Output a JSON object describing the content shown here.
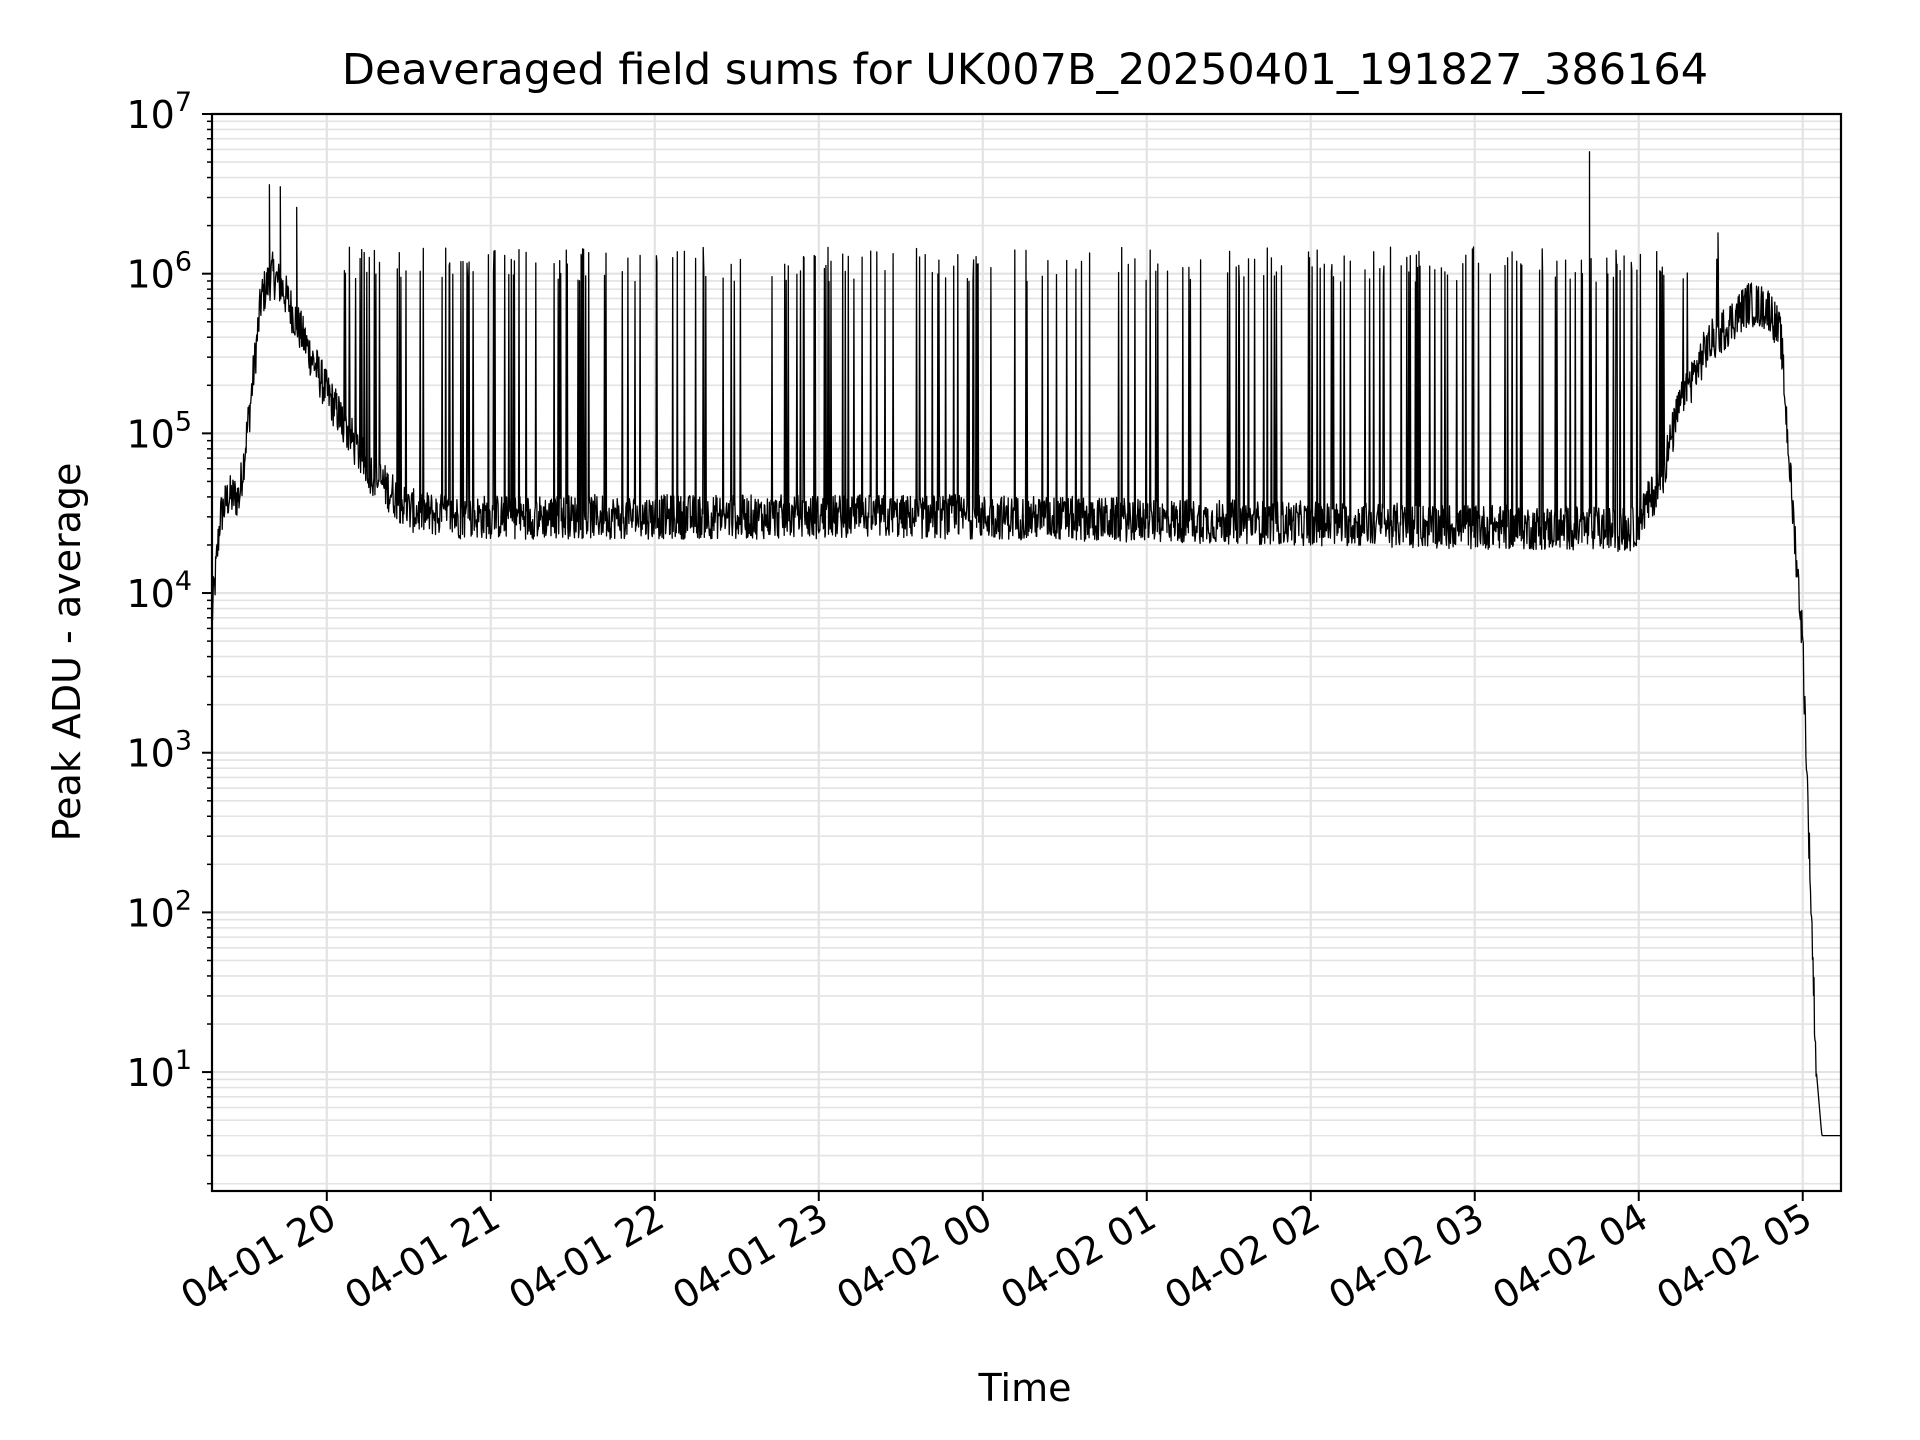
{
  "chart_data": {
    "type": "line",
    "title": "Deaveraged field sums for UK007B_20250401_191827_386164",
    "xlabel": "Time",
    "ylabel": "Peak ADU - average",
    "yscale": "log",
    "ylim": [
      1.8,
      10000000
    ],
    "xlim": [
      "2025-04-01 19:18",
      "2025-04-02 05:14"
    ],
    "grid": true,
    "line_color": "#000000",
    "x_ticks": [
      {
        "t": "2025-04-01 20:00",
        "label": "04-01 20"
      },
      {
        "t": "2025-04-01 21:00",
        "label": "04-01 21"
      },
      {
        "t": "2025-04-01 22:00",
        "label": "04-01 22"
      },
      {
        "t": "2025-04-01 23:00",
        "label": "04-01 23"
      },
      {
        "t": "2025-04-02 00:00",
        "label": "04-02 00"
      },
      {
        "t": "2025-04-02 01:00",
        "label": "04-02 01"
      },
      {
        "t": "2025-04-02 02:00",
        "label": "04-02 02"
      },
      {
        "t": "2025-04-02 03:00",
        "label": "04-02 03"
      },
      {
        "t": "2025-04-02 04:00",
        "label": "04-02 04"
      },
      {
        "t": "2025-04-02 05:00",
        "label": "04-02 05"
      }
    ],
    "y_ticks": [
      {
        "value": 10,
        "base": "10",
        "exp": "1"
      },
      {
        "value": 100,
        "base": "10",
        "exp": "2"
      },
      {
        "value": 1000,
        "base": "10",
        "exp": "3"
      },
      {
        "value": 10000,
        "base": "10",
        "exp": "4"
      },
      {
        "value": 100000,
        "base": "10",
        "exp": "5"
      },
      {
        "value": 1000000,
        "base": "10",
        "exp": "6"
      },
      {
        "value": 10000000,
        "base": "10",
        "exp": "7"
      }
    ],
    "series": [
      {
        "baseline": [
          {
            "t": "2025-04-01 19:18",
            "y": 7000
          },
          {
            "t": "2025-04-01 19:21",
            "y": 30000
          },
          {
            "t": "2025-04-01 19:24",
            "y": 40000
          },
          {
            "t": "2025-04-01 19:28",
            "y": 40000
          },
          {
            "t": "2025-04-01 19:32",
            "y": 150000
          },
          {
            "t": "2025-04-01 19:36",
            "y": 700000
          },
          {
            "t": "2025-04-01 19:40",
            "y": 1000000
          },
          {
            "t": "2025-04-01 19:44",
            "y": 800000
          },
          {
            "t": "2025-04-01 19:50",
            "y": 450000
          },
          {
            "t": "2025-04-01 20:00",
            "y": 180000
          },
          {
            "t": "2025-04-01 20:15",
            "y": 60000
          },
          {
            "t": "2025-04-01 20:30",
            "y": 33000
          },
          {
            "t": "2025-04-01 20:45",
            "y": 30000
          },
          {
            "t": "2025-04-01 21:00",
            "y": 30000
          },
          {
            "t": "2025-04-02 00:00",
            "y": 30000
          },
          {
            "t": "2025-04-02 03:00",
            "y": 26000
          },
          {
            "t": "2025-04-02 03:58",
            "y": 25000
          },
          {
            "t": "2025-04-02 04:08",
            "y": 50000
          },
          {
            "t": "2025-04-02 04:15",
            "y": 150000
          },
          {
            "t": "2025-04-02 04:25",
            "y": 350000
          },
          {
            "t": "2025-04-02 04:40",
            "y": 650000
          },
          {
            "t": "2025-04-02 04:48",
            "y": 600000
          },
          {
            "t": "2025-04-02 04:52",
            "y": 400000
          },
          {
            "t": "2025-04-02 04:56",
            "y": 40000
          },
          {
            "t": "2025-04-02 05:00",
            "y": 5000
          },
          {
            "t": "2025-04-02 05:05",
            "y": 10
          },
          {
            "t": "2025-04-02 05:07",
            "y": 4
          },
          {
            "t": "2025-04-02 05:14",
            "y": 4
          }
        ],
        "spikes": [
          {
            "t": "2025-04-01 19:39",
            "y": 3600000
          },
          {
            "t": "2025-04-01 19:43",
            "y": 3500000
          },
          {
            "t": "2025-04-01 19:49",
            "y": 2600000
          },
          {
            "t": "2025-04-02 03:42",
            "y": 5800000
          },
          {
            "t": "2025-04-02 04:29",
            "y": 1800000
          }
        ],
        "band_low": 25000,
        "band_high": 1200000,
        "band_start": "2025-04-01 20:05",
        "band_end": "2025-04-02 04:30"
      }
    ]
  }
}
